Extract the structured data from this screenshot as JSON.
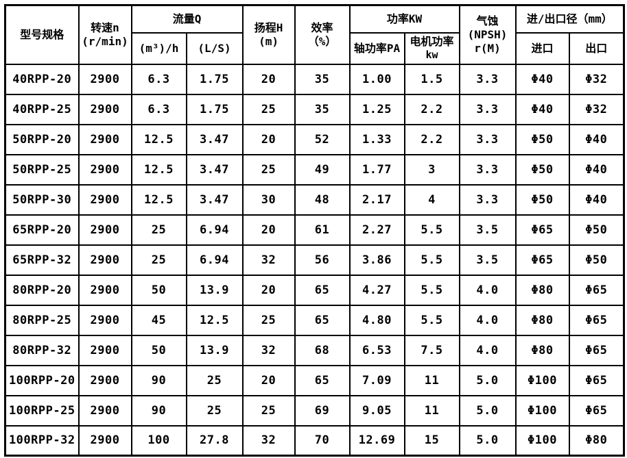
{
  "table": {
    "header": {
      "model": "型号规格",
      "speed_line1": "转速n",
      "speed_line2": "(r/min)",
      "flow_group": "流量Q",
      "flow_m3h": "(m³)/h",
      "flow_ls": "(L/S)",
      "head_line1": "扬程H",
      "head_line2": "(m)",
      "eff_line1": "效率",
      "eff_line2": "（%）",
      "power_group": "功率KW",
      "power_shaft": "轴功率PA",
      "power_motor_line1": "电机功率",
      "power_motor_line2": "kw",
      "npsh_line1": "气蚀",
      "npsh_line2": "(NPSH)",
      "npsh_line3": "r(M)",
      "port_group": "进/出口径（mm）",
      "port_in": "进口",
      "port_out": "出口"
    },
    "cell_names": [
      "model-cell",
      "speed-cell",
      "flow-m3h-cell",
      "flow-ls-cell",
      "head-cell",
      "efficiency-cell",
      "shaft-power-cell",
      "motor-power-cell",
      "npsh-cell",
      "inlet-diameter-cell",
      "outlet-diameter-cell"
    ],
    "rows": [
      [
        "40RPP-20",
        "2900",
        "6.3",
        "1.75",
        "20",
        "35",
        "1.00",
        "1.5",
        "3.3",
        "Φ40",
        "Φ32"
      ],
      [
        "40RPP-25",
        "2900",
        "6.3",
        "1.75",
        "25",
        "35",
        "1.25",
        "2.2",
        "3.3",
        "Φ40",
        "Φ32"
      ],
      [
        "50RPP-20",
        "2900",
        "12.5",
        "3.47",
        "20",
        "52",
        "1.33",
        "2.2",
        "3.3",
        "Φ50",
        "Φ40"
      ],
      [
        "50RPP-25",
        "2900",
        "12.5",
        "3.47",
        "25",
        "49",
        "1.77",
        "3",
        "3.3",
        "Φ50",
        "Φ40"
      ],
      [
        "50RPP-30",
        "2900",
        "12.5",
        "3.47",
        "30",
        "48",
        "2.17",
        "4",
        "3.3",
        "Φ50",
        "Φ40"
      ],
      [
        "65RPP-20",
        "2900",
        "25",
        "6.94",
        "20",
        "61",
        "2.27",
        "5.5",
        "3.5",
        "Φ65",
        "Φ50"
      ],
      [
        "65RPP-32",
        "2900",
        "25",
        "6.94",
        "32",
        "56",
        "3.86",
        "5.5",
        "3.5",
        "Φ65",
        "Φ50"
      ],
      [
        "80RPP-20",
        "2900",
        "50",
        "13.9",
        "20",
        "65",
        "4.27",
        "5.5",
        "4.0",
        "Φ80",
        "Φ65"
      ],
      [
        "80RPP-25",
        "2900",
        "45",
        "12.5",
        "25",
        "65",
        "4.80",
        "5.5",
        "4.0",
        "Φ80",
        "Φ65"
      ],
      [
        "80RPP-32",
        "2900",
        "50",
        "13.9",
        "32",
        "68",
        "6.53",
        "7.5",
        "4.0",
        "Φ80",
        "Φ65"
      ],
      [
        "100RPP-20",
        "2900",
        "90",
        "25",
        "20",
        "65",
        "7.09",
        "11",
        "5.0",
        "Φ100",
        "Φ65"
      ],
      [
        "100RPP-25",
        "2900",
        "90",
        "25",
        "25",
        "69",
        "9.05",
        "11",
        "5.0",
        "Φ100",
        "Φ65"
      ],
      [
        "100RPP-32",
        "2900",
        "100",
        "27.8",
        "32",
        "70",
        "12.69",
        "15",
        "5.0",
        "Φ100",
        "Φ80"
      ]
    ],
    "colors": {
      "border": "#000000",
      "text": "#000000",
      "background": "#ffffff"
    }
  }
}
